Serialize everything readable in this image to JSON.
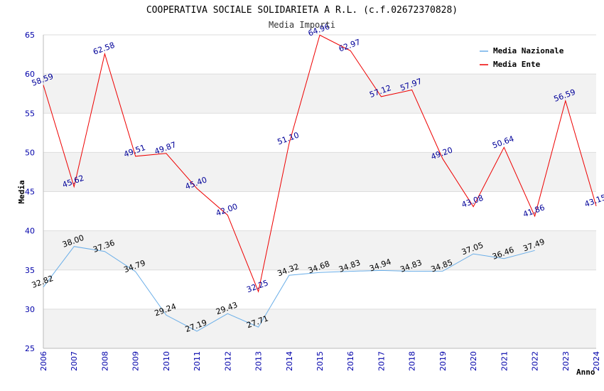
{
  "chart_data": {
    "type": "line",
    "title": "COOPERATIVA SOCIALE SOLIDARIETA A R.L. (c.f.02672370828)",
    "subtitle": "Media Importi",
    "xlabel": "Anno",
    "ylabel": "Media",
    "ylim": [
      25,
      65
    ],
    "yticks": [
      "25",
      "30",
      "35",
      "40",
      "45",
      "50",
      "55",
      "60",
      "65"
    ],
    "x": [
      "2006",
      "2007",
      "2008",
      "2009",
      "2010",
      "2011",
      "2012",
      "2013",
      "2014",
      "2015",
      "2016",
      "2017",
      "2018",
      "2019",
      "2020",
      "2021",
      "2022",
      "2023",
      "2024"
    ],
    "grid": true,
    "legend_position": "top-right",
    "series": [
      {
        "name": "Media Nazionale",
        "color": "#6aaee8",
        "label_color": "#000000",
        "values": [
          32.82,
          38.0,
          37.36,
          34.79,
          29.24,
          27.19,
          29.43,
          27.71,
          34.32,
          34.68,
          34.83,
          34.94,
          34.83,
          34.85,
          37.05,
          36.46,
          37.49,
          null,
          null
        ],
        "labels": [
          "32.82",
          "38.00",
          "37.36",
          "34.79",
          "29.24",
          "27.19",
          "29.43",
          "27.71",
          "34.32",
          "34.68",
          "34.83",
          "34.94",
          "34.83",
          "34.85",
          "37.05",
          "36.46",
          "37.49",
          null,
          null
        ]
      },
      {
        "name": "Media Ente",
        "color": "#ee0000",
        "label_color": "#000099",
        "values": [
          58.59,
          45.62,
          62.58,
          49.51,
          49.87,
          45.4,
          42.0,
          32.25,
          51.1,
          64.96,
          62.97,
          57.12,
          57.97,
          49.2,
          43.08,
          50.64,
          41.86,
          56.59,
          43.15
        ],
        "labels": [
          "58.59",
          "45.62",
          "62.58",
          "49.51",
          "49.87",
          "45.40",
          "42.00",
          "32.25",
          "51.10",
          "64.96",
          "62.97",
          "57.12",
          "57.97",
          "49.20",
          "43.08",
          "50.64",
          "41.86",
          "56.59",
          "43.15"
        ]
      }
    ]
  }
}
